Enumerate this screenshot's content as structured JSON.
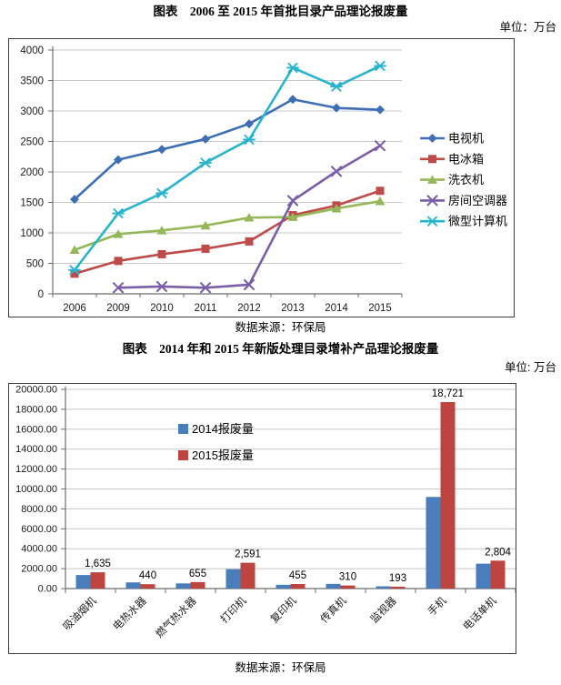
{
  "charts": [
    {
      "title": "图表　2006 至 2015 年首批目录产品理论报废量",
      "unit": "单位：万台",
      "source": "数据来源：环保局",
      "chart_data": {
        "type": "line",
        "categories": [
          "2006",
          "2009",
          "2010",
          "2011",
          "2012",
          "2013",
          "2014",
          "2015"
        ],
        "series": [
          {
            "name": "电视机",
            "color": "#3E6FB5",
            "marker": "diamond",
            "values": [
              1550,
              2200,
              2370,
              2540,
              2790,
              3190,
              3050,
              3020
            ]
          },
          {
            "name": "电冰箱",
            "color": "#BE4B48",
            "marker": "square",
            "values": [
              330,
              540,
              650,
              740,
              860,
              1290,
              1450,
              1690
            ]
          },
          {
            "name": "洗衣机",
            "color": "#94B857",
            "marker": "triangle",
            "values": [
              720,
              980,
              1040,
              1120,
              1250,
              1260,
              1400,
              1520
            ]
          },
          {
            "name": "房间空调器",
            "color": "#7A5EA8",
            "marker": "x",
            "values": [
              null,
              100,
              120,
              100,
              150,
              1530,
              2010,
              2430
            ]
          },
          {
            "name": "微型计算机",
            "color": "#29B4CE",
            "marker": "star",
            "values": [
              390,
              1320,
              1650,
              2150,
              2530,
              3710,
              3400,
              3740
            ]
          }
        ],
        "ylim": [
          0,
          4000
        ],
        "ytick_step": 500,
        "grid": true,
        "legend_position": "right"
      }
    },
    {
      "title": "图表　2014 年和 2015 年新版处理目录增补产品理论报废量",
      "unit": "单位: 万台",
      "source": "数据来源：环保局",
      "chart_data": {
        "type": "bar",
        "categories": [
          "吸油烟机",
          "电热水器",
          "燃气热水器",
          "打印机",
          "复印机",
          "传真机",
          "监视器",
          "手机",
          "电话单机"
        ],
        "series": [
          {
            "name": "2014报废量",
            "color": "#4A7EBB",
            "values": [
              1360,
              620,
              520,
              1950,
              380,
              470,
              230,
              9200,
              2500
            ]
          },
          {
            "name": "2015报废量",
            "color": "#BE4440",
            "values": [
              1635,
              440,
              655,
              2591,
              455,
              310,
              193,
              18721,
              2804
            ],
            "labels": [
              "1,635",
              "440",
              "655",
              "2,591",
              "455",
              "310",
              "193",
              "18,721",
              "2,804"
            ]
          }
        ],
        "ylim": [
          0,
          20000
        ],
        "ytick_step": 2000,
        "ytick_decimals": 2,
        "grid": true,
        "legend_position": "inside-top-left",
        "xlabel_rotation": -45
      }
    }
  ],
  "style": {
    "gridline_color": "#c8c8c8",
    "axis_color": "#6e6e6e",
    "tick_label_color": "#1a1a1a"
  }
}
